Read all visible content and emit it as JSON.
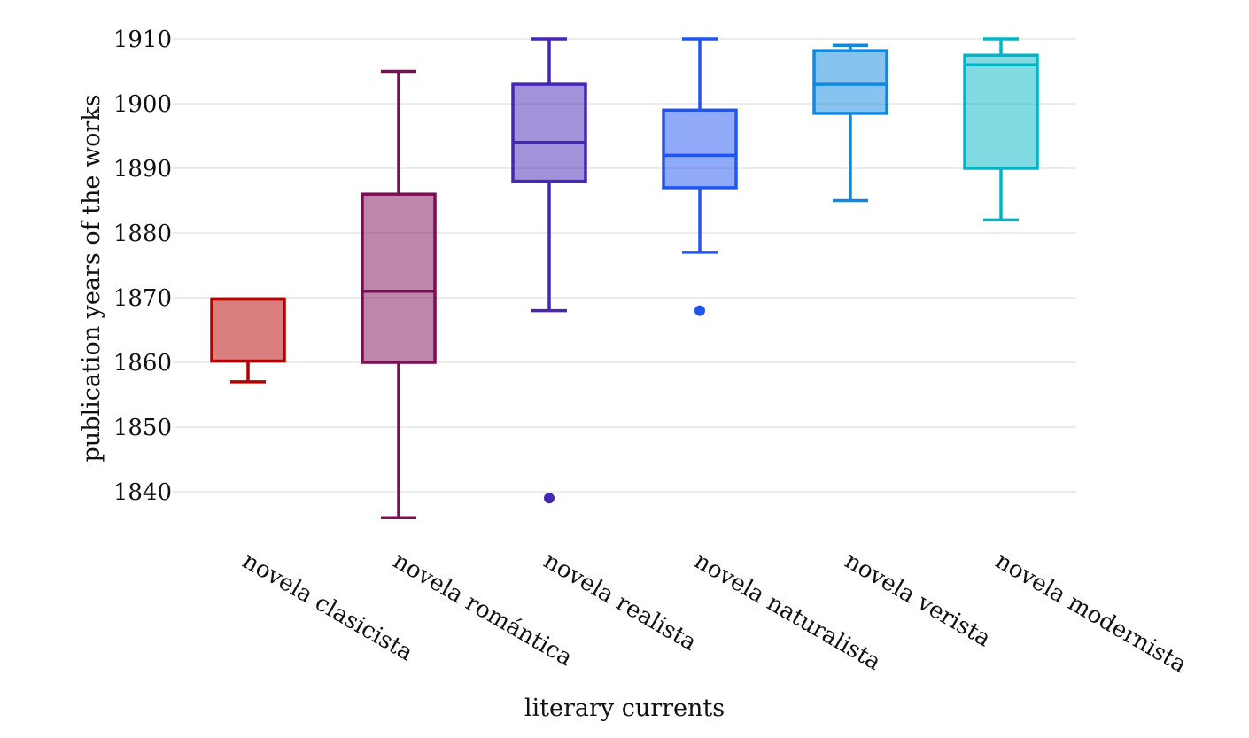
{
  "chart_data": {
    "type": "box",
    "xlabel": "literary currents",
    "ylabel": "publication years of the works",
    "ylim": [
      1832,
      1912
    ],
    "yticks": [
      1840,
      1850,
      1860,
      1870,
      1880,
      1890,
      1900,
      1910
    ],
    "grid": true,
    "categories": [
      "novela clasicista",
      "novela romántica",
      "novela realista",
      "novela naturalista",
      "novela verista",
      "novela modernista"
    ],
    "boxes": [
      {
        "category": "novela clasicista",
        "whisker_low": 1857,
        "q1": 1860.2,
        "median": 1869.8,
        "q3": 1869.8,
        "whisker_high": 1869.8,
        "outliers": [],
        "color": "#b30000"
      },
      {
        "category": "novela romántica",
        "whisker_low": 1836,
        "q1": 1860,
        "median": 1871,
        "q3": 1886,
        "whisker_high": 1905,
        "outliers": [],
        "color": "#7a0f55"
      },
      {
        "category": "novela realista",
        "whisker_low": 1868,
        "q1": 1888,
        "median": 1894,
        "q3": 1903,
        "whisker_high": 1910,
        "outliers": [
          1839
        ],
        "color": "#4626b3"
      },
      {
        "category": "novela naturalista",
        "whisker_low": 1877,
        "q1": 1887,
        "median": 1892,
        "q3": 1899,
        "whisker_high": 1910,
        "outliers": [
          1868
        ],
        "color": "#2255f0"
      },
      {
        "category": "novela verista",
        "whisker_low": 1885,
        "q1": 1898.5,
        "median": 1903,
        "q3": 1908.2,
        "whisker_high": 1909,
        "outliers": [],
        "color": "#1188e0"
      },
      {
        "category": "novela modernista",
        "whisker_low": 1882,
        "q1": 1890,
        "median": 1906,
        "q3": 1907.5,
        "whisker_high": 1910,
        "outliers": [],
        "color": "#00b5c5"
      }
    ]
  }
}
